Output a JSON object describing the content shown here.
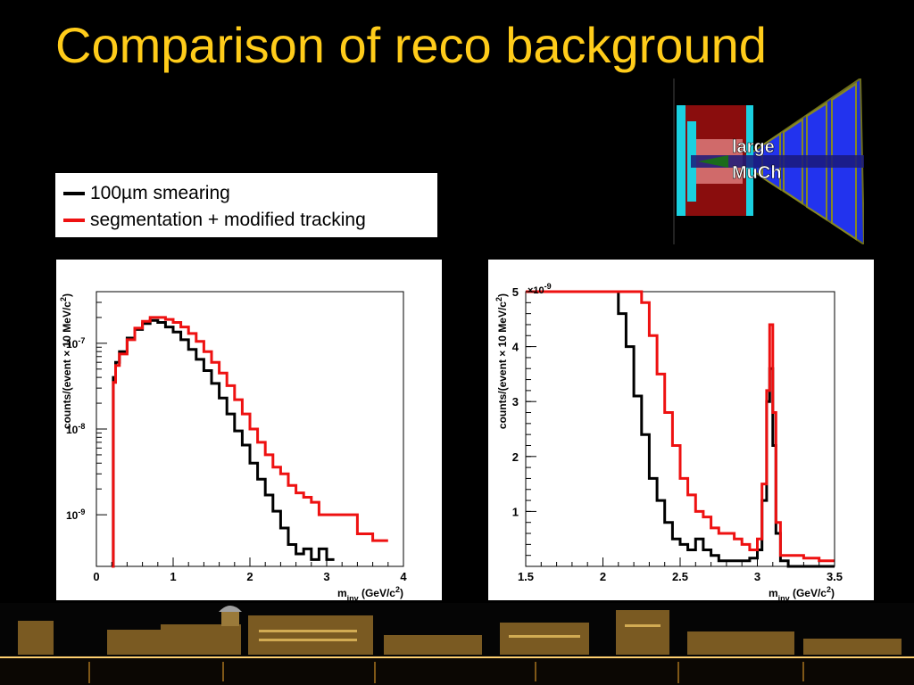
{
  "slide": {
    "title": "Comparison of reco background"
  },
  "legend": {
    "items": [
      {
        "label": "100µm smearing",
        "color": "#000000"
      },
      {
        "label": "segmentation + modified tracking",
        "color": "#ee1111"
      }
    ]
  },
  "detector": {
    "label_line1": "large",
    "label_line2": "MuCh"
  },
  "colors": {
    "title": "#ffcc1a",
    "series_black": "#000000",
    "series_red": "#ee1111"
  },
  "chart_data": [
    {
      "type": "line",
      "xlabel": "m_inv (GeV/c^2)",
      "xlabel_main": "m",
      "xlabel_sub": "inv",
      "xlabel_tail": " (GeV/c",
      "xlabel_sup": "2",
      "xlabel_end": ")",
      "ylabel": "counts/(event × 10 MeV/c^2)",
      "ylabel_main": "counts/(event × 10 MeV/c",
      "ylabel_sup": "2",
      "ylabel_end": ")",
      "y_scale": "log",
      "xlim": [
        0,
        4
      ],
      "ylim": [
        2.5e-10,
        4e-07
      ],
      "x_ticks": [
        "0",
        "1",
        "2",
        "3",
        "4"
      ],
      "y_ticks": [
        {
          "value": 1e-07,
          "base": "10",
          "exp": "-7"
        },
        {
          "value": 1e-08,
          "base": "10",
          "exp": "-8"
        },
        {
          "value": 1e-09,
          "base": "10",
          "exp": "-9"
        }
      ],
      "series": [
        {
          "color": "#000000",
          "x": [
            0.2,
            0.22,
            0.25,
            0.3,
            0.4,
            0.5,
            0.6,
            0.7,
            0.8,
            0.9,
            1.0,
            1.1,
            1.2,
            1.3,
            1.4,
            1.5,
            1.6,
            1.7,
            1.8,
            1.9,
            2.0,
            2.1,
            2.2,
            2.3,
            2.4,
            2.5,
            2.6,
            2.7,
            2.8,
            2.9,
            3.0
          ],
          "y": [
            2.5e-10,
            4e-08,
            6e-08,
            8e-08,
            1.15e-07,
            1.45e-07,
            1.7e-07,
            1.85e-07,
            1.75e-07,
            1.55e-07,
            1.35e-07,
            1.1e-07,
            8.5e-08,
            6.5e-08,
            4.8e-08,
            3.4e-08,
            2.3e-08,
            1.5e-08,
            9.5e-09,
            6.5e-09,
            4e-09,
            2.6e-09,
            1.7e-09,
            1.1e-09,
            7e-10,
            4.5e-10,
            3.5e-10,
            4e-10,
            3e-10,
            4e-10,
            3e-10
          ]
        },
        {
          "color": "#ee1111",
          "x": [
            0.2,
            0.22,
            0.25,
            0.3,
            0.4,
            0.5,
            0.6,
            0.7,
            0.8,
            0.9,
            1.0,
            1.1,
            1.2,
            1.3,
            1.4,
            1.5,
            1.6,
            1.7,
            1.8,
            1.9,
            2.0,
            2.1,
            2.2,
            2.3,
            2.4,
            2.5,
            2.6,
            2.7,
            2.8,
            2.9,
            3.0,
            3.2,
            3.4,
            3.6
          ],
          "y": [
            2.5e-10,
            3.5e-08,
            5.5e-08,
            7.5e-08,
            1.1e-07,
            1.5e-07,
            1.8e-07,
            2e-07,
            2e-07,
            1.9e-07,
            1.75e-07,
            1.55e-07,
            1.3e-07,
            1.05e-07,
            8e-08,
            6e-08,
            4.5e-08,
            3.2e-08,
            2.2e-08,
            1.5e-08,
            1e-08,
            7e-09,
            5e-09,
            3.6e-09,
            3e-09,
            2.2e-09,
            1.8e-09,
            1.6e-09,
            1.4e-09,
            1e-09,
            1e-09,
            1e-09,
            6e-10,
            5e-10
          ]
        }
      ]
    },
    {
      "type": "line",
      "xlabel": "m_inv (GeV/c^2)",
      "xlabel_main": "m",
      "xlabel_sub": "inv",
      "xlabel_tail": " (GeV/c",
      "xlabel_sup": "2",
      "xlabel_end": ")",
      "ylabel": "counts/(event × 10 MeV/c^2)",
      "ylabel_main": "counts/(event × 10 MeV/c",
      "ylabel_sup": "2",
      "ylabel_end": ")",
      "y_scale": "linear",
      "y_multiplier": "×10-9",
      "y_multiplier_main": "×10",
      "y_multiplier_exp": "-9",
      "xlim": [
        1.5,
        3.5
      ],
      "ylim": [
        0,
        5
      ],
      "x_ticks": [
        "1.5",
        "2",
        "2.5",
        "3",
        "3.5"
      ],
      "y_ticks": [
        "1",
        "2",
        "3",
        "4",
        "5"
      ],
      "series": [
        {
          "color": "#000000",
          "x": [
            1.5,
            2.0,
            2.05,
            2.1,
            2.15,
            2.2,
            2.25,
            2.3,
            2.35,
            2.4,
            2.45,
            2.5,
            2.55,
            2.6,
            2.65,
            2.7,
            2.75,
            2.8,
            2.85,
            2.9,
            2.95,
            3.0,
            3.03,
            3.06,
            3.08,
            3.1,
            3.12,
            3.15,
            3.2,
            3.3,
            3.4
          ],
          "y": [
            5,
            5,
            5,
            4.6,
            4.0,
            3.1,
            2.4,
            1.6,
            1.2,
            0.8,
            0.5,
            0.4,
            0.3,
            0.5,
            0.3,
            0.2,
            0.1,
            0.1,
            0.1,
            0.1,
            0.15,
            0.3,
            1.2,
            3.0,
            3.6,
            2.2,
            0.6,
            0.1,
            0.0,
            0.0,
            0.0
          ]
        },
        {
          "color": "#ee1111",
          "x": [
            1.5,
            2.0,
            2.1,
            2.2,
            2.25,
            2.3,
            2.35,
            2.4,
            2.45,
            2.5,
            2.55,
            2.6,
            2.65,
            2.7,
            2.75,
            2.8,
            2.85,
            2.9,
            2.95,
            3.0,
            3.03,
            3.06,
            3.08,
            3.1,
            3.12,
            3.15,
            3.2,
            3.3,
            3.4,
            3.5
          ],
          "y": [
            5,
            5,
            5,
            5,
            4.8,
            4.2,
            3.5,
            2.8,
            2.2,
            1.6,
            1.3,
            1.0,
            0.9,
            0.7,
            0.6,
            0.6,
            0.5,
            0.4,
            0.3,
            0.5,
            1.5,
            3.2,
            4.4,
            2.8,
            0.8,
            0.2,
            0.2,
            0.15,
            0.1,
            0.1
          ]
        }
      ]
    }
  ]
}
